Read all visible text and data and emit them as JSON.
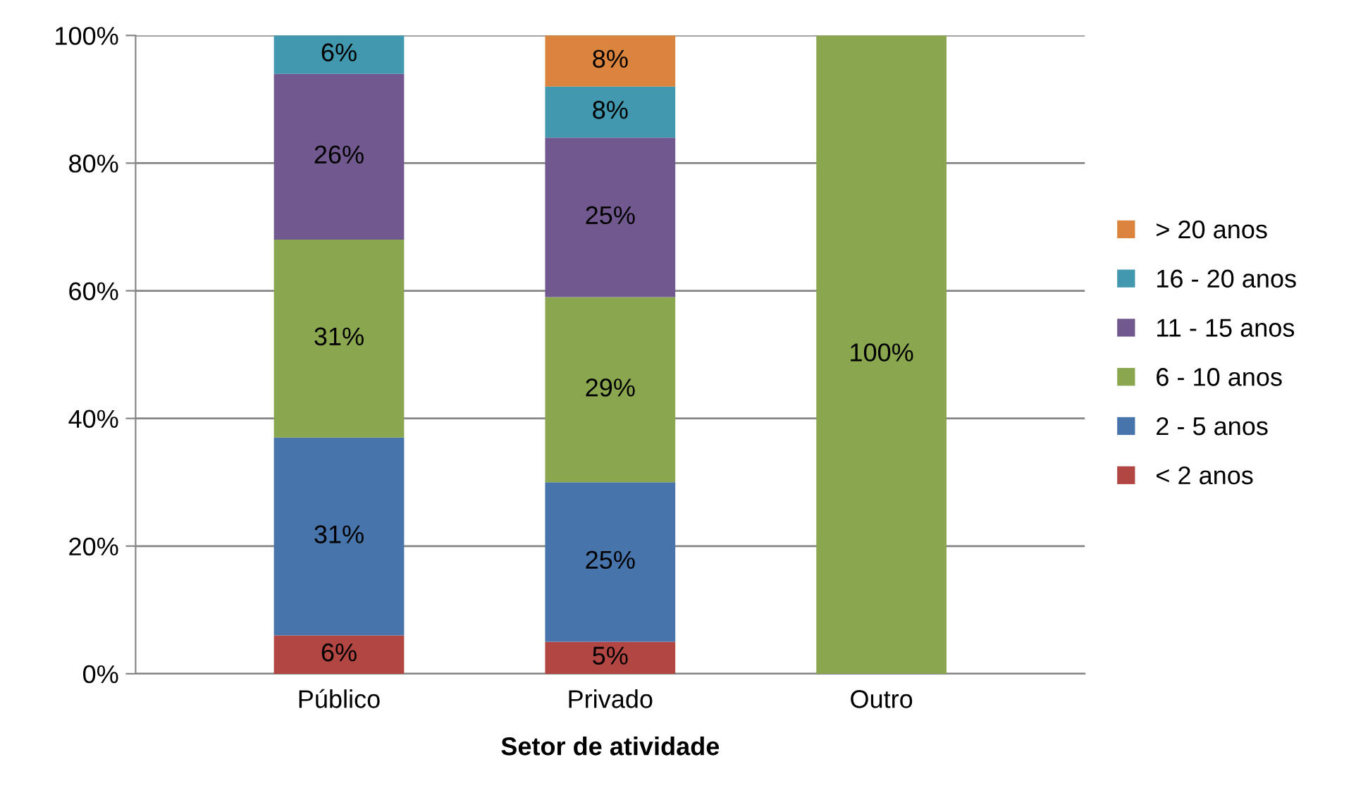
{
  "chart_data": {
    "type": "bar",
    "stacked": true,
    "xlabel": "Setor de atividade",
    "categories": [
      "Público",
      "Privado",
      "Outro"
    ],
    "series": [
      {
        "name": "< 2 anos",
        "color": "#b24643",
        "values": [
          6,
          5,
          0
        ],
        "value_labels": [
          "6%",
          "5%",
          null
        ]
      },
      {
        "name": "2 - 5 anos",
        "color": "#4674ab",
        "values": [
          31,
          25,
          0
        ],
        "value_labels": [
          "31%",
          "25%",
          null
        ]
      },
      {
        "name": "6 - 10 anos",
        "color": "#8aa64f",
        "values": [
          31,
          29,
          100
        ],
        "value_labels": [
          "31%",
          "29%",
          "100%"
        ]
      },
      {
        "name": "11 - 15 anos",
        "color": "#71588f",
        "values": [
          26,
          25,
          0
        ],
        "value_labels": [
          "26%",
          "25%",
          null
        ]
      },
      {
        "name": "16 - 20 anos",
        "color": "#4298af",
        "values": [
          6,
          8,
          0
        ],
        "value_labels": [
          "6%",
          "8%",
          null
        ]
      },
      {
        "name": "> 20 anos",
        "color": "#db843d",
        "values": [
          0,
          8,
          0
        ],
        "value_labels": [
          null,
          "8%",
          null
        ]
      }
    ],
    "ylim": [
      0,
      100
    ],
    "yticks": [
      {
        "value": 0,
        "label": "0%"
      },
      {
        "value": 20,
        "label": "20%"
      },
      {
        "value": 40,
        "label": "40%"
      },
      {
        "value": 60,
        "label": "60%"
      },
      {
        "value": 80,
        "label": "80%"
      },
      {
        "value": 100,
        "label": "100%"
      }
    ],
    "grid": "y",
    "legend": "right"
  }
}
